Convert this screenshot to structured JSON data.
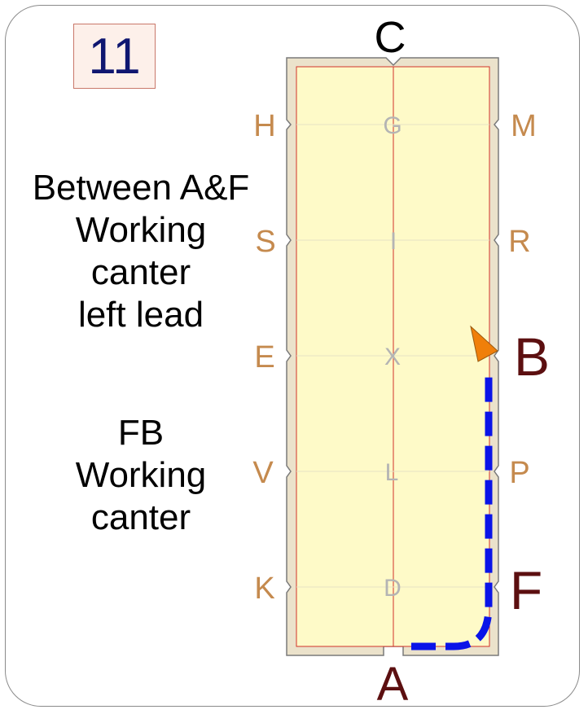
{
  "figure_number": "11",
  "description": {
    "exercise_lines": [
      "Between A&F",
      "Working",
      "canter",
      "left lead"
    ],
    "gait_lines": [
      "FB",
      "Working",
      "canter"
    ]
  },
  "arena": {
    "end_letters": {
      "top": "C",
      "bottom": "A"
    },
    "left_side_letters": [
      "H",
      "S",
      "E",
      "V",
      "K"
    ],
    "centerline_letters": [
      "G",
      "I",
      "X",
      "L",
      "D"
    ],
    "right_side_letters": [
      "M",
      "R",
      "B",
      "P",
      "F"
    ],
    "highlighted_letters": [
      "B",
      "F"
    ]
  },
  "path": {
    "from": "A",
    "through": "F",
    "to": "B",
    "style": "dashed",
    "direction_marker": "arrowhead"
  },
  "colors": {
    "arena_fill": "#fefac8",
    "arena_border": "#ebe2cb",
    "path": "#0a14e8",
    "arrow": "#f07f0a",
    "side_letter": "#c58a4e",
    "centerline_letter": "#b4b4b4",
    "key_letter": "#5c0f10"
  }
}
